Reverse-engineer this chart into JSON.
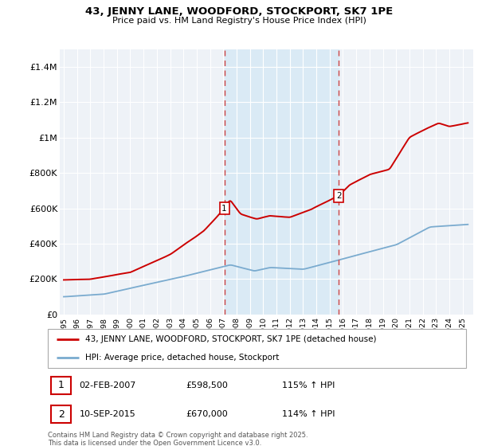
{
  "title": "43, JENNY LANE, WOODFORD, STOCKPORT, SK7 1PE",
  "subtitle": "Price paid vs. HM Land Registry's House Price Index (HPI)",
  "ylim": [
    0,
    1500000
  ],
  "yticks": [
    0,
    200000,
    400000,
    600000,
    800000,
    1000000,
    1200000,
    1400000
  ],
  "ytick_labels": [
    "£0",
    "£200K",
    "£400K",
    "£600K",
    "£800K",
    "£1M",
    "£1.2M",
    "£1.4M"
  ],
  "legend_line1": "43, JENNY LANE, WOODFORD, STOCKPORT, SK7 1PE (detached house)",
  "legend_line2": "HPI: Average price, detached house, Stockport",
  "annotation1_date": "02-FEB-2007",
  "annotation1_price": "£598,500",
  "annotation1_hpi": "115% ↑ HPI",
  "annotation2_date": "10-SEP-2015",
  "annotation2_price": "£670,000",
  "annotation2_hpi": "114% ↑ HPI",
  "footer": "Contains HM Land Registry data © Crown copyright and database right 2025.\nThis data is licensed under the Open Government Licence v3.0.",
  "red_color": "#cc0000",
  "blue_color": "#7aabcf",
  "shade_color": "#daeaf5",
  "vline1_x": 2007.08,
  "vline2_x": 2015.69,
  "chart_bg": "#eef2f7",
  "grid_color": "#ffffff",
  "xmin": 1994.7,
  "xmax": 2025.8
}
